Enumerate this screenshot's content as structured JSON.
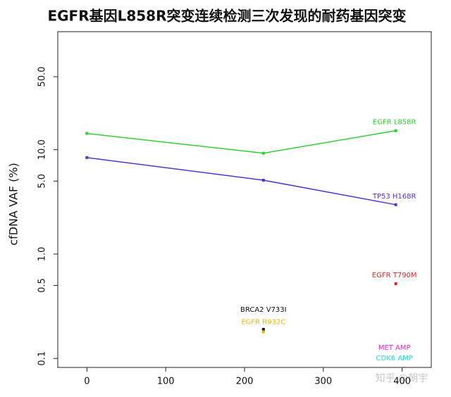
{
  "chart_data": {
    "type": "line",
    "title": "EGFR基因L858R突变连续检测三次发现的耐药基因突变",
    "y_label": "cfDNA VAF (%)",
    "y_log": true,
    "xlim": [
      -37,
      437
    ],
    "xticks": [
      0,
      100,
      200,
      300,
      400
    ],
    "ylim": [
      0.082,
      135
    ],
    "yticks": [
      0.1,
      0.5,
      {
        "value": 1,
        "label": "1.0"
      },
      {
        "value": 5,
        "label": "5.0"
      },
      {
        "value": 10,
        "label": "10.0"
      },
      {
        "value": 50,
        "label": "50.0"
      }
    ],
    "series": [
      {
        "name": "EGFR L858R",
        "color": "#2fd12f",
        "x": [
          0,
          224,
          392
        ],
        "values": [
          14.3,
          9.25,
          15.2
        ]
      },
      {
        "name": "TP53 H168R",
        "color": "#5533cc",
        "x": [
          0,
          224,
          392
        ],
        "values": [
          8.4,
          5.1,
          2.97
        ]
      },
      {
        "name": "EGFR T790M",
        "color": "#e02626",
        "x": [
          392
        ],
        "values": [
          0.52
        ]
      },
      {
        "name": "BRCA2 V733I",
        "color": "#111111",
        "x": [
          224
        ],
        "values": [
          0.19
        ]
      },
      {
        "name": "EGFR R932C",
        "color": "#e8b800",
        "x": [
          224
        ],
        "values": [
          0.18
        ]
      },
      {
        "name": "MET AMP",
        "color": "#e020e0",
        "x": [
          392
        ],
        "values": [
          null
        ]
      },
      {
        "name": "CDK6 AMP",
        "color": "#22d8d8",
        "x": [
          392
        ],
        "values": [
          null
        ]
      }
    ],
    "watermark": "知乎 @朝宇"
  }
}
